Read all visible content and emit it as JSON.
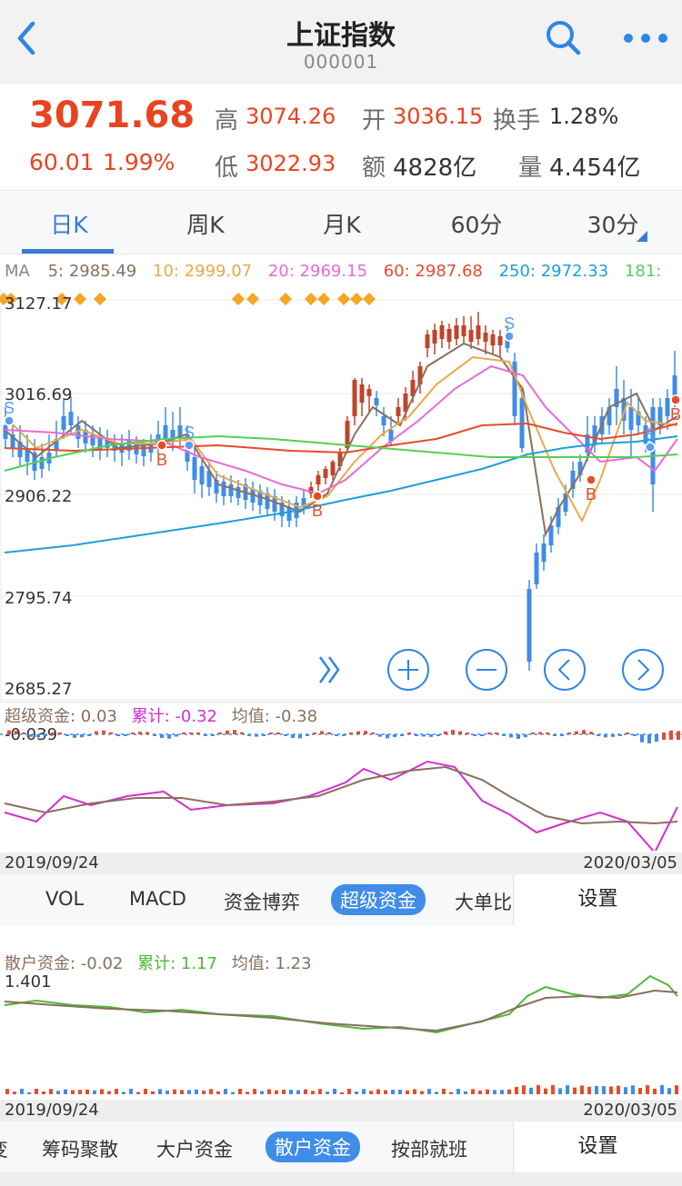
{
  "header": {
    "title": "上证指数",
    "code": "000001"
  },
  "quote": {
    "price": "3071.68",
    "change": "60.01",
    "change_pct": "1.99%",
    "high_label": "高",
    "high": "3074.26",
    "open_label": "开",
    "open": "3036.15",
    "turnover_label": "换手",
    "turnover": "1.28%",
    "low_label": "低",
    "low": "3022.93",
    "amount_label": "额",
    "amount": "4828亿",
    "volume_label": "量",
    "volume": "4.454亿"
  },
  "period_tabs": [
    "日K",
    "周K",
    "月K",
    "60分",
    "30分"
  ],
  "ma": {
    "label": "MA",
    "items": [
      {
        "text": "5: 2985.49",
        "color": "#8b6f5e"
      },
      {
        "text": "10: 2999.07",
        "color": "#e8a94a"
      },
      {
        "text": "20: 2969.15",
        "color": "#e86ad8"
      },
      {
        "text": "60: 2987.68",
        "color": "#e84b2c"
      },
      {
        "text": "250: 2972.33",
        "color": "#1ea0d8"
      },
      {
        "text": "181:",
        "color": "#55cf55"
      }
    ]
  },
  "y_axis": [
    "3127.17",
    "3016.69",
    "2906.22",
    "2795.74",
    "2685.27"
  ],
  "signals": {
    "buy": "B",
    "sell": "S"
  },
  "sub1": {
    "legend": [
      {
        "text": "超级资金: 0.03",
        "color": "#8b6f5e"
      },
      {
        "text": "累计: -0.32",
        "color": "#d42ed4"
      },
      {
        "text": "均值: -0.38",
        "color": "#8b6f5e"
      }
    ],
    "axis_value": "-0.039",
    "date_start": "2019/09/24",
    "date_end": "2020/03/05",
    "tabs": [
      "VOL",
      "MACD",
      "资金博弈",
      "超级资金",
      "大单比"
    ],
    "active": "超级资金",
    "settings": "设置"
  },
  "sub2": {
    "legend": [
      {
        "text": "散户资金: -0.02",
        "color": "#8b6f5e"
      },
      {
        "text": "累计: 1.17",
        "color": "#4fb83a"
      },
      {
        "text": "均值: 1.23",
        "color": "#8b6f5e"
      }
    ],
    "axis_value": "1.401",
    "date_start": "2019/09/24",
    "date_end": "2020/03/05",
    "tabs": [
      "变",
      "筹码聚散",
      "大户资金",
      "散户资金",
      "按部就班"
    ],
    "active": "散户资金",
    "settings": "设置"
  },
  "colors": {
    "up": "#c0442a",
    "down": "#3f8de6",
    "accent": "#3a7bd5"
  }
}
